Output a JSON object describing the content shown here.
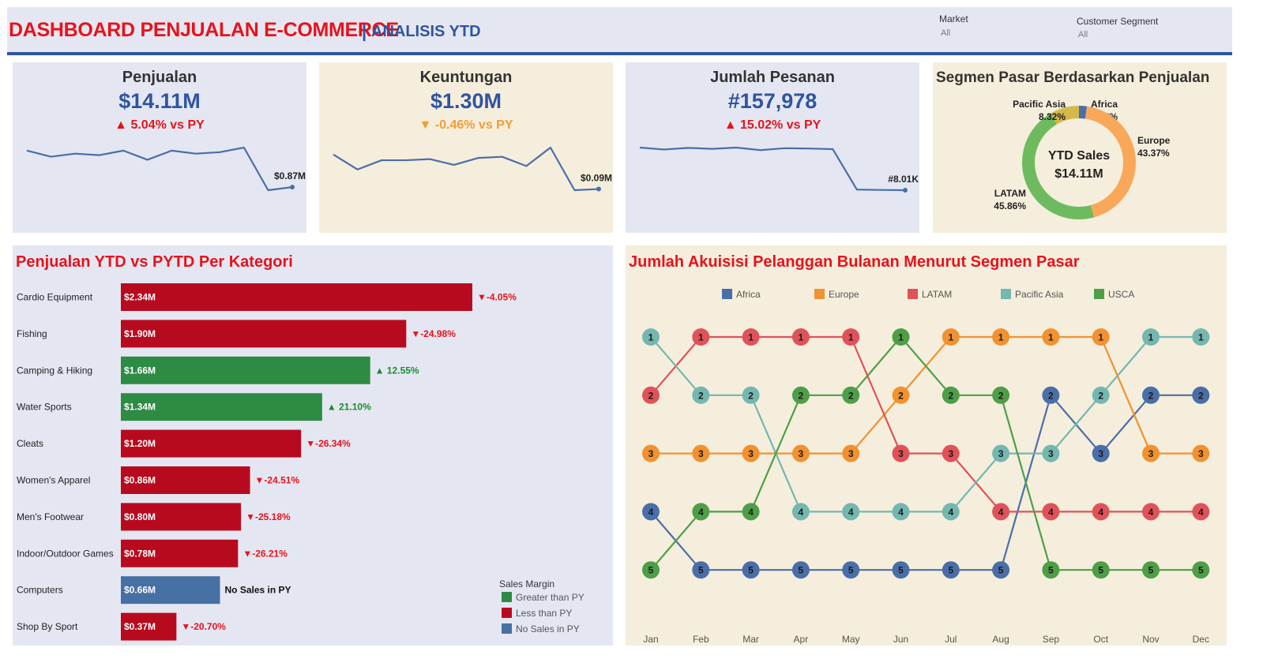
{
  "header": {
    "title": "DASHBOARD PENJUALAN E-COMMERCE",
    "separator": "|",
    "subtitle": "ANALISIS YTD",
    "filters": [
      {
        "label": "Market",
        "value": "All"
      },
      {
        "label": "Customer Segment",
        "value": "All"
      }
    ]
  },
  "kpis": [
    {
      "title": "Penjualan",
      "value": "$14.11M",
      "arrow": "▲",
      "change": "5.04% vs PY",
      "change_color": "#e8121b",
      "end_label": "$0.87M",
      "background": "#e4e7f2"
    },
    {
      "title": "Keuntungan",
      "value": "$1.30M",
      "arrow": "▼",
      "change": "-0.46% vs PY",
      "change_color": "#f39c34",
      "end_label": "$0.09M",
      "background": "#f5eedc"
    },
    {
      "title": "Jumlah Pesanan",
      "value": "#157,978",
      "arrow": "▲",
      "change": "15.02% vs PY",
      "change_color": "#e8121b",
      "end_label": "#8.01K",
      "background": "#e4e7f2"
    }
  ],
  "donut": {
    "title": "Segmen Pasar Berdasarkan Penjualan",
    "center_label": "YTD Sales",
    "center_value": "$14.11M",
    "background": "#f5eedc"
  },
  "bar_panel": {
    "title": "Penjualan YTD vs PYTD Per Kategori",
    "background": "#e4e7f2",
    "legend_title": "Sales Margin",
    "legend": [
      {
        "label": "Greater than PY",
        "color": "#2e8b44"
      },
      {
        "label": "Less than PY",
        "color": "#b80a1e"
      },
      {
        "label": "No Sales in PY",
        "color": "#4670a3"
      }
    ]
  },
  "bump_panel": {
    "title": "Jumlah Akuisisi Pelanggan Bulanan Menurut Segmen Pasar",
    "background": "#f5eedc"
  },
  "chart_data": [
    {
      "type": "line",
      "title": "Penjualan",
      "end_label": "$0.87M",
      "values": [
        0.99,
        0.97,
        0.98,
        0.975,
        0.99,
        0.96,
        0.99,
        0.98,
        0.985,
        1.0,
        0.86,
        0.87
      ],
      "color": "#4a6ea8"
    },
    {
      "type": "line",
      "title": "Keuntungan",
      "end_label": "$0.09M",
      "values": [
        0.12,
        0.107,
        0.115,
        0.115,
        0.116,
        0.111,
        0.117,
        0.118,
        0.11,
        0.126,
        0.089,
        0.09
      ],
      "color": "#4a6ea8"
    },
    {
      "type": "line",
      "title": "Jumlah Pesanan",
      "end_label": "#8.01K",
      "values": [
        14.7,
        14.4,
        14.65,
        14.5,
        14.7,
        14.3,
        14.6,
        14.55,
        14.45,
        8.1,
        8.05,
        8.01
      ],
      "color": "#4a6ea8"
    },
    {
      "type": "pie",
      "title": "Segmen Pasar Berdasarkan Penjualan",
      "slices": [
        {
          "name": "Africa",
          "value": 2.25,
          "label": "2.25%",
          "color": "#4a6ea8"
        },
        {
          "name": "Europe",
          "value": 43.37,
          "label": "43.37%",
          "color": "#f9a85a"
        },
        {
          "name": "LATAM",
          "value": 45.86,
          "label": "45.86%",
          "color": "#6dbb5e"
        },
        {
          "name": "Pacific Asia",
          "value": 8.32,
          "label": "8.32%",
          "color": "#d4b84a"
        }
      ]
    },
    {
      "type": "bar",
      "title": "Penjualan YTD vs PYTD Per Kategori",
      "categories": [
        "Cardio Equipment",
        "Fishing",
        "Camping & Hiking",
        "Water Sports",
        "Cleats",
        "Women's Apparel",
        "Men's Footwear",
        "Indoor/Outdoor Games",
        "Computers",
        "Shop By Sport"
      ],
      "values": [
        2.34,
        1.9,
        1.66,
        1.34,
        1.2,
        0.86,
        0.8,
        0.78,
        0.66,
        0.37
      ],
      "value_labels": [
        "$2.34M",
        "$1.90M",
        "$1.66M",
        "$1.34M",
        "$1.20M",
        "$0.86M",
        "$0.80M",
        "$0.78M",
        "$0.66M",
        "$0.37M"
      ],
      "changes": [
        "▼-4.05%",
        "▼-24.98%",
        "▲ 12.55%",
        "▲ 21.10%",
        "▼-26.34%",
        "▼-24.51%",
        "▼-25.18%",
        "▼-26.21%",
        "No Sales in PY",
        "▼-20.70%"
      ],
      "margin": [
        "less",
        "less",
        "greater",
        "greater",
        "less",
        "less",
        "less",
        "less",
        "none",
        "less"
      ],
      "xlim": [
        0,
        2.34
      ]
    },
    {
      "type": "line",
      "title": "Jumlah Akuisisi Pelanggan Bulanan Menurut Segmen Pasar",
      "x": [
        "Jan",
        "Feb",
        "Mar",
        "Apr",
        "May",
        "Jun",
        "Jul",
        "Aug",
        "Sep",
        "Oct",
        "Nov",
        "Dec"
      ],
      "series": [
        {
          "name": "Africa",
          "color": "#4a6ea8",
          "values": [
            4,
            5,
            5,
            5,
            5,
            5,
            5,
            5,
            2,
            3,
            2,
            2
          ]
        },
        {
          "name": "Europe",
          "color": "#f2912f",
          "values": [
            3,
            3,
            3,
            3,
            3,
            2,
            1,
            1,
            1,
            1,
            3,
            3
          ]
        },
        {
          "name": "LATAM",
          "color": "#e05259",
          "values": [
            2,
            1,
            1,
            1,
            1,
            3,
            3,
            4,
            4,
            4,
            4,
            4
          ]
        },
        {
          "name": "Pacific Asia",
          "color": "#74b7b0",
          "values": [
            1,
            2,
            2,
            4,
            4,
            4,
            4,
            3,
            3,
            2,
            1,
            1
          ]
        },
        {
          "name": "USCA",
          "color": "#4e9e48",
          "values": [
            5,
            4,
            4,
            2,
            2,
            1,
            2,
            2,
            5,
            5,
            5,
            5
          ]
        }
      ],
      "ylim": [
        1,
        5
      ]
    }
  ]
}
